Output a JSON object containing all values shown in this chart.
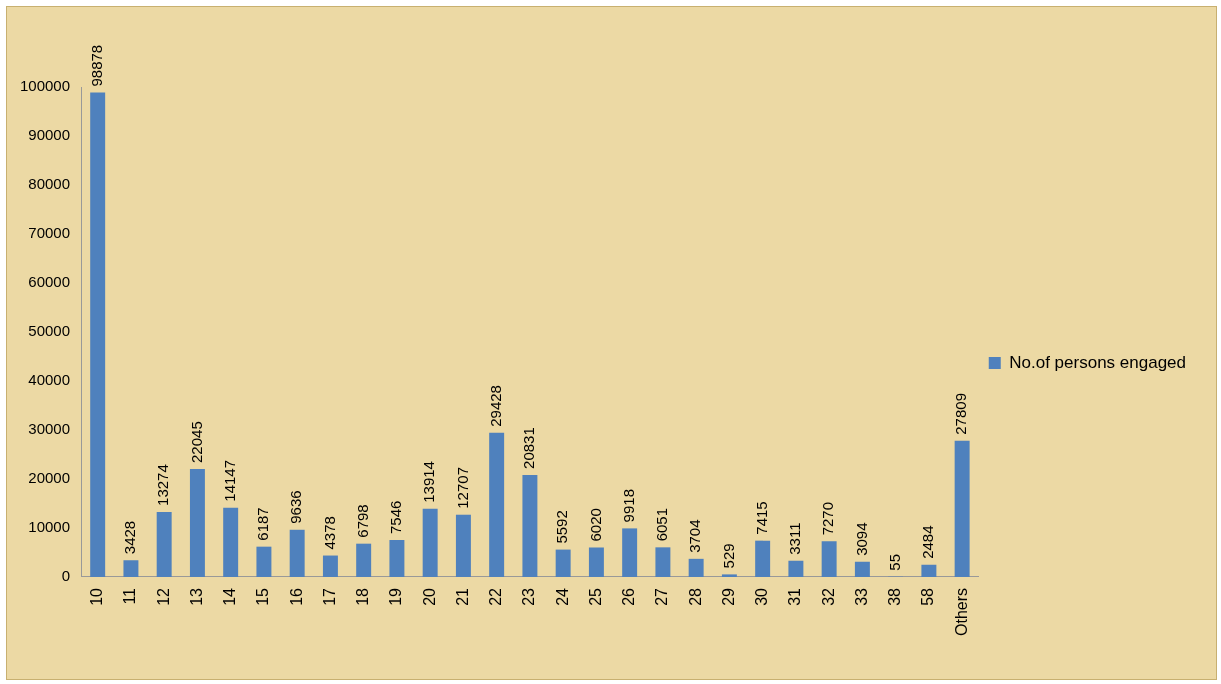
{
  "chart_data": {
    "type": "bar",
    "categories": [
      "10",
      "11",
      "12",
      "13",
      "14",
      "15",
      "16",
      "17",
      "18",
      "19",
      "20",
      "21",
      "22",
      "23",
      "24",
      "25",
      "26",
      "27",
      "28",
      "29",
      "30",
      "31",
      "32",
      "33",
      "38",
      "58",
      "Others"
    ],
    "series": [
      {
        "name": "No.of persons engaged",
        "color": "#4f81bd",
        "values": [
          98878,
          3428,
          13274,
          22045,
          14147,
          6187,
          9636,
          4378,
          6798,
          7546,
          13914,
          12707,
          29428,
          20831,
          5592,
          6020,
          9918,
          6051,
          3704,
          529,
          7415,
          3311,
          7270,
          3094,
          55,
          2484,
          27809
        ]
      }
    ],
    "ylim": [
      0,
      100000
    ],
    "yticks": [
      0,
      10000,
      20000,
      30000,
      40000,
      50000,
      60000,
      70000,
      80000,
      90000,
      100000
    ],
    "grid": false,
    "legend": "right",
    "data_labels": true
  }
}
